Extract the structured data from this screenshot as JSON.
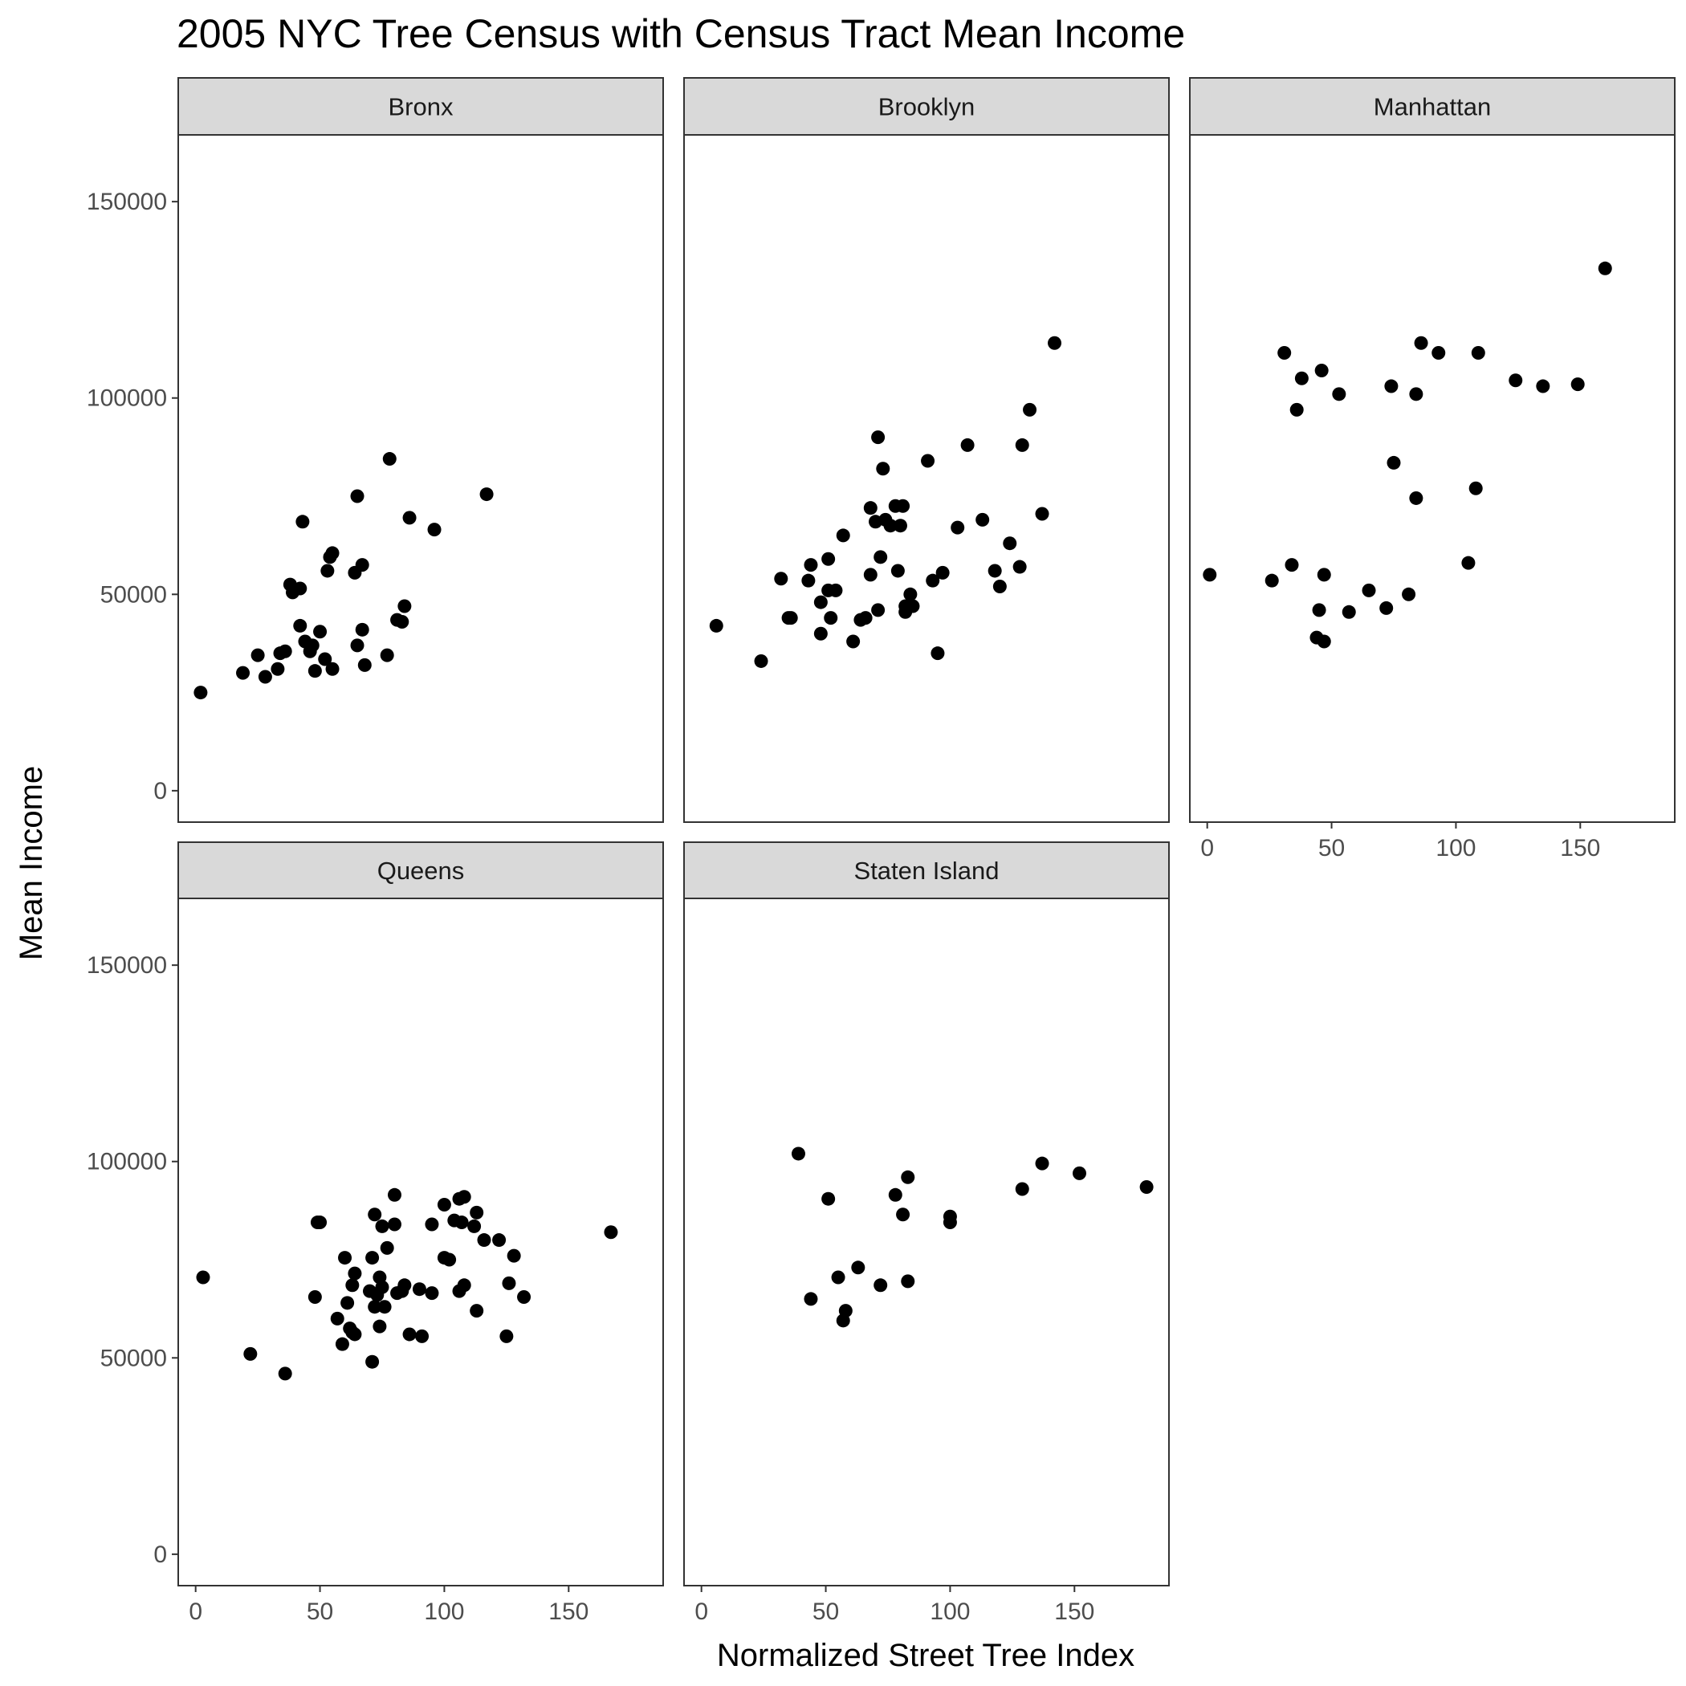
{
  "chart_data": {
    "type": "scatter",
    "title": "2005 NYC Tree Census with Census Tract Mean Income",
    "xlabel": "Normalized Street Tree Index",
    "ylabel": "Mean Income",
    "xlim": [
      -7,
      188
    ],
    "ylim": [
      -8000,
      167000
    ],
    "x_ticks": [
      0,
      50,
      100,
      150
    ],
    "y_ticks": [
      0,
      50000,
      100000,
      150000
    ],
    "grid": false,
    "panels": [
      {
        "name": "Bronx",
        "points": [
          [
            2,
            25000
          ],
          [
            19,
            30000
          ],
          [
            25,
            34500
          ],
          [
            28,
            29000
          ],
          [
            33,
            31000
          ],
          [
            34,
            35000
          ],
          [
            36,
            35500
          ],
          [
            38,
            52500
          ],
          [
            39,
            50500
          ],
          [
            42,
            51500
          ],
          [
            42,
            42000
          ],
          [
            43,
            68500
          ],
          [
            44,
            38000
          ],
          [
            46,
            35500
          ],
          [
            47,
            37000
          ],
          [
            48,
            30500
          ],
          [
            50,
            40500
          ],
          [
            52,
            33500
          ],
          [
            53,
            56000
          ],
          [
            54,
            59500
          ],
          [
            55,
            60500
          ],
          [
            55,
            31000
          ],
          [
            64,
            55500
          ],
          [
            65,
            37000
          ],
          [
            65,
            75000
          ],
          [
            67,
            57500
          ],
          [
            67,
            41000
          ],
          [
            68,
            32000
          ],
          [
            77,
            34500
          ],
          [
            78,
            84500
          ],
          [
            81,
            43500
          ],
          [
            83,
            43000
          ],
          [
            84,
            47000
          ],
          [
            86,
            69500
          ],
          [
            96,
            66500
          ],
          [
            117,
            75500
          ]
        ]
      },
      {
        "name": "Brooklyn",
        "points": [
          [
            6,
            42000
          ],
          [
            24,
            33000
          ],
          [
            32,
            54000
          ],
          [
            35,
            44000
          ],
          [
            36,
            44000
          ],
          [
            43,
            53500
          ],
          [
            44,
            57500
          ],
          [
            48,
            40000
          ],
          [
            48,
            48000
          ],
          [
            51,
            59000
          ],
          [
            51,
            51000
          ],
          [
            52,
            44000
          ],
          [
            54,
            51000
          ],
          [
            57,
            65000
          ],
          [
            61,
            38000
          ],
          [
            64,
            43500
          ],
          [
            66,
            44000
          ],
          [
            68,
            72000
          ],
          [
            68,
            55000
          ],
          [
            70,
            68500
          ],
          [
            71,
            46000
          ],
          [
            71,
            90000
          ],
          [
            72,
            59500
          ],
          [
            73,
            82000
          ],
          [
            74,
            69000
          ],
          [
            76,
            67500
          ],
          [
            78,
            72500
          ],
          [
            79,
            56000
          ],
          [
            80,
            67500
          ],
          [
            81,
            72500
          ],
          [
            82,
            47000
          ],
          [
            82,
            45500
          ],
          [
            84,
            50000
          ],
          [
            85,
            47000
          ],
          [
            91,
            84000
          ],
          [
            93,
            53500
          ],
          [
            95,
            35000
          ],
          [
            97,
            55500
          ],
          [
            103,
            67000
          ],
          [
            107,
            88000
          ],
          [
            113,
            69000
          ],
          [
            118,
            56000
          ],
          [
            120,
            52000
          ],
          [
            124,
            63000
          ],
          [
            128,
            57000
          ],
          [
            129,
            88000
          ],
          [
            132,
            97000
          ],
          [
            137,
            70500
          ],
          [
            142,
            114000
          ]
        ]
      },
      {
        "name": "Manhattan",
        "points": [
          [
            1,
            55000
          ],
          [
            26,
            53500
          ],
          [
            31,
            111500
          ],
          [
            34,
            57500
          ],
          [
            36,
            97000
          ],
          [
            38,
            105000
          ],
          [
            45,
            46000
          ],
          [
            46,
            107000
          ],
          [
            47,
            55000
          ],
          [
            47,
            38000
          ],
          [
            53,
            101000
          ],
          [
            57,
            45500
          ],
          [
            44,
            39000
          ],
          [
            65,
            51000
          ],
          [
            72,
            46500
          ],
          [
            74,
            103000
          ],
          [
            75,
            83500
          ],
          [
            84,
            74500
          ],
          [
            84,
            101000
          ],
          [
            86,
            114000
          ],
          [
            81,
            50000
          ],
          [
            93,
            111500
          ],
          [
            105,
            58000
          ],
          [
            108,
            77000
          ],
          [
            109,
            111500
          ],
          [
            124,
            104500
          ],
          [
            135,
            103000
          ],
          [
            149,
            103500
          ],
          [
            160,
            133000
          ]
        ]
      },
      {
        "name": "Queens",
        "points": [
          [
            3,
            70500
          ],
          [
            22,
            51000
          ],
          [
            36,
            46000
          ],
          [
            48,
            65500
          ],
          [
            49,
            84500
          ],
          [
            50,
            84500
          ],
          [
            57,
            60000
          ],
          [
            59,
            53500
          ],
          [
            60,
            75500
          ],
          [
            61,
            64000
          ],
          [
            62,
            57500
          ],
          [
            63,
            68500
          ],
          [
            63,
            56500
          ],
          [
            64,
            71500
          ],
          [
            64,
            56000
          ],
          [
            70,
            67000
          ],
          [
            71,
            75500
          ],
          [
            71,
            49000
          ],
          [
            72,
            63000
          ],
          [
            72,
            86500
          ],
          [
            73,
            66000
          ],
          [
            74,
            70500
          ],
          [
            74,
            58000
          ],
          [
            75,
            83500
          ],
          [
            75,
            68000
          ],
          [
            76,
            63000
          ],
          [
            77,
            78000
          ],
          [
            80,
            91500
          ],
          [
            80,
            84000
          ],
          [
            81,
            66500
          ],
          [
            83,
            67000
          ],
          [
            84,
            68500
          ],
          [
            86,
            56000
          ],
          [
            90,
            67500
          ],
          [
            91,
            55500
          ],
          [
            95,
            66500
          ],
          [
            95,
            84000
          ],
          [
            100,
            75500
          ],
          [
            100,
            89000
          ],
          [
            102,
            75000
          ],
          [
            104,
            85000
          ],
          [
            106,
            90500
          ],
          [
            106,
            67000
          ],
          [
            107,
            84500
          ],
          [
            108,
            68500
          ],
          [
            108,
            91000
          ],
          [
            112,
            83500
          ],
          [
            113,
            62000
          ],
          [
            113,
            87000
          ],
          [
            116,
            80000
          ],
          [
            122,
            80000
          ],
          [
            125,
            55500
          ],
          [
            126,
            69000
          ],
          [
            128,
            76000
          ],
          [
            132,
            65500
          ],
          [
            167,
            82000
          ]
        ]
      },
      {
        "name": "Staten Island",
        "points": [
          [
            39,
            102000
          ],
          [
            44,
            65000
          ],
          [
            51,
            90500
          ],
          [
            55,
            70500
          ],
          [
            57,
            59500
          ],
          [
            58,
            62000
          ],
          [
            63,
            73000
          ],
          [
            72,
            68500
          ],
          [
            78,
            91500
          ],
          [
            81,
            86500
          ],
          [
            83,
            69500
          ],
          [
            83,
            96000
          ],
          [
            100,
            84500
          ],
          [
            100,
            86000
          ],
          [
            129,
            93000
          ],
          [
            137,
            99500
          ],
          [
            152,
            97000
          ],
          [
            179,
            93500
          ]
        ]
      }
    ]
  }
}
